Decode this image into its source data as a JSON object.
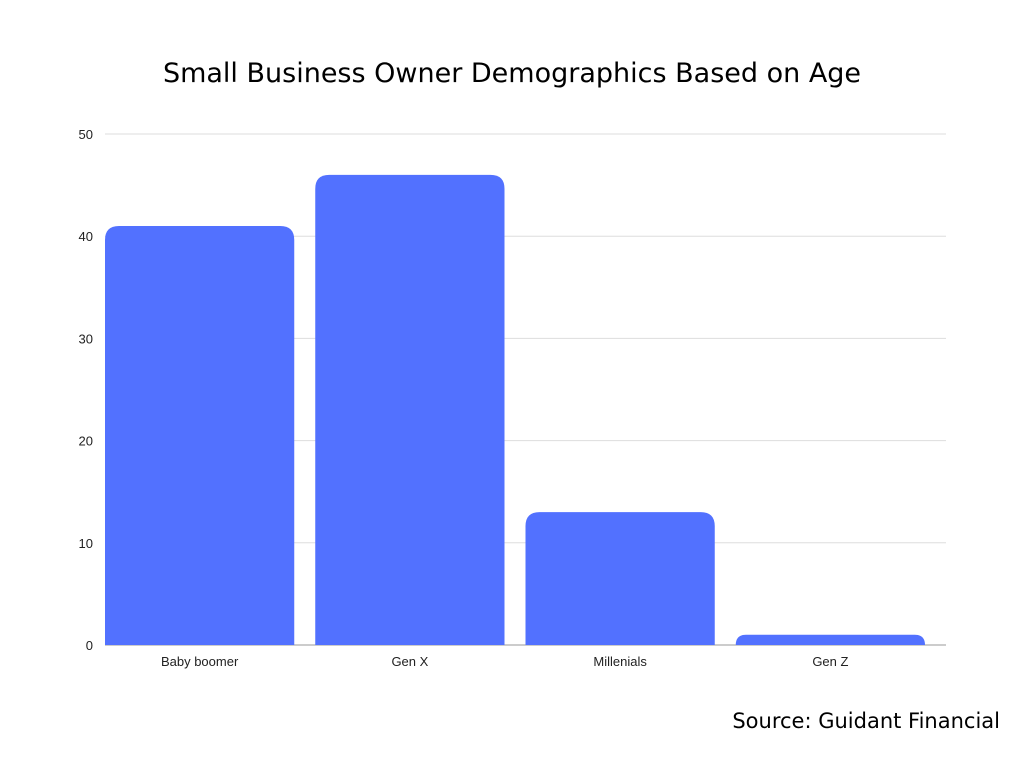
{
  "chart_data": {
    "type": "bar",
    "title": "Small Business Owner Demographics Based on Age",
    "categories": [
      "Baby boomer",
      "Gen X",
      "Millenials",
      "Gen Z"
    ],
    "values": [
      41,
      46,
      13,
      1
    ],
    "ylim": [
      0,
      50
    ],
    "yticks": [
      0,
      10,
      20,
      30,
      40,
      50
    ],
    "xlabel": "",
    "ylabel": "",
    "grid": true,
    "bar_color": "#5271ff",
    "grid_color": "#dddddd"
  },
  "source": "Source: Guidant Financial"
}
